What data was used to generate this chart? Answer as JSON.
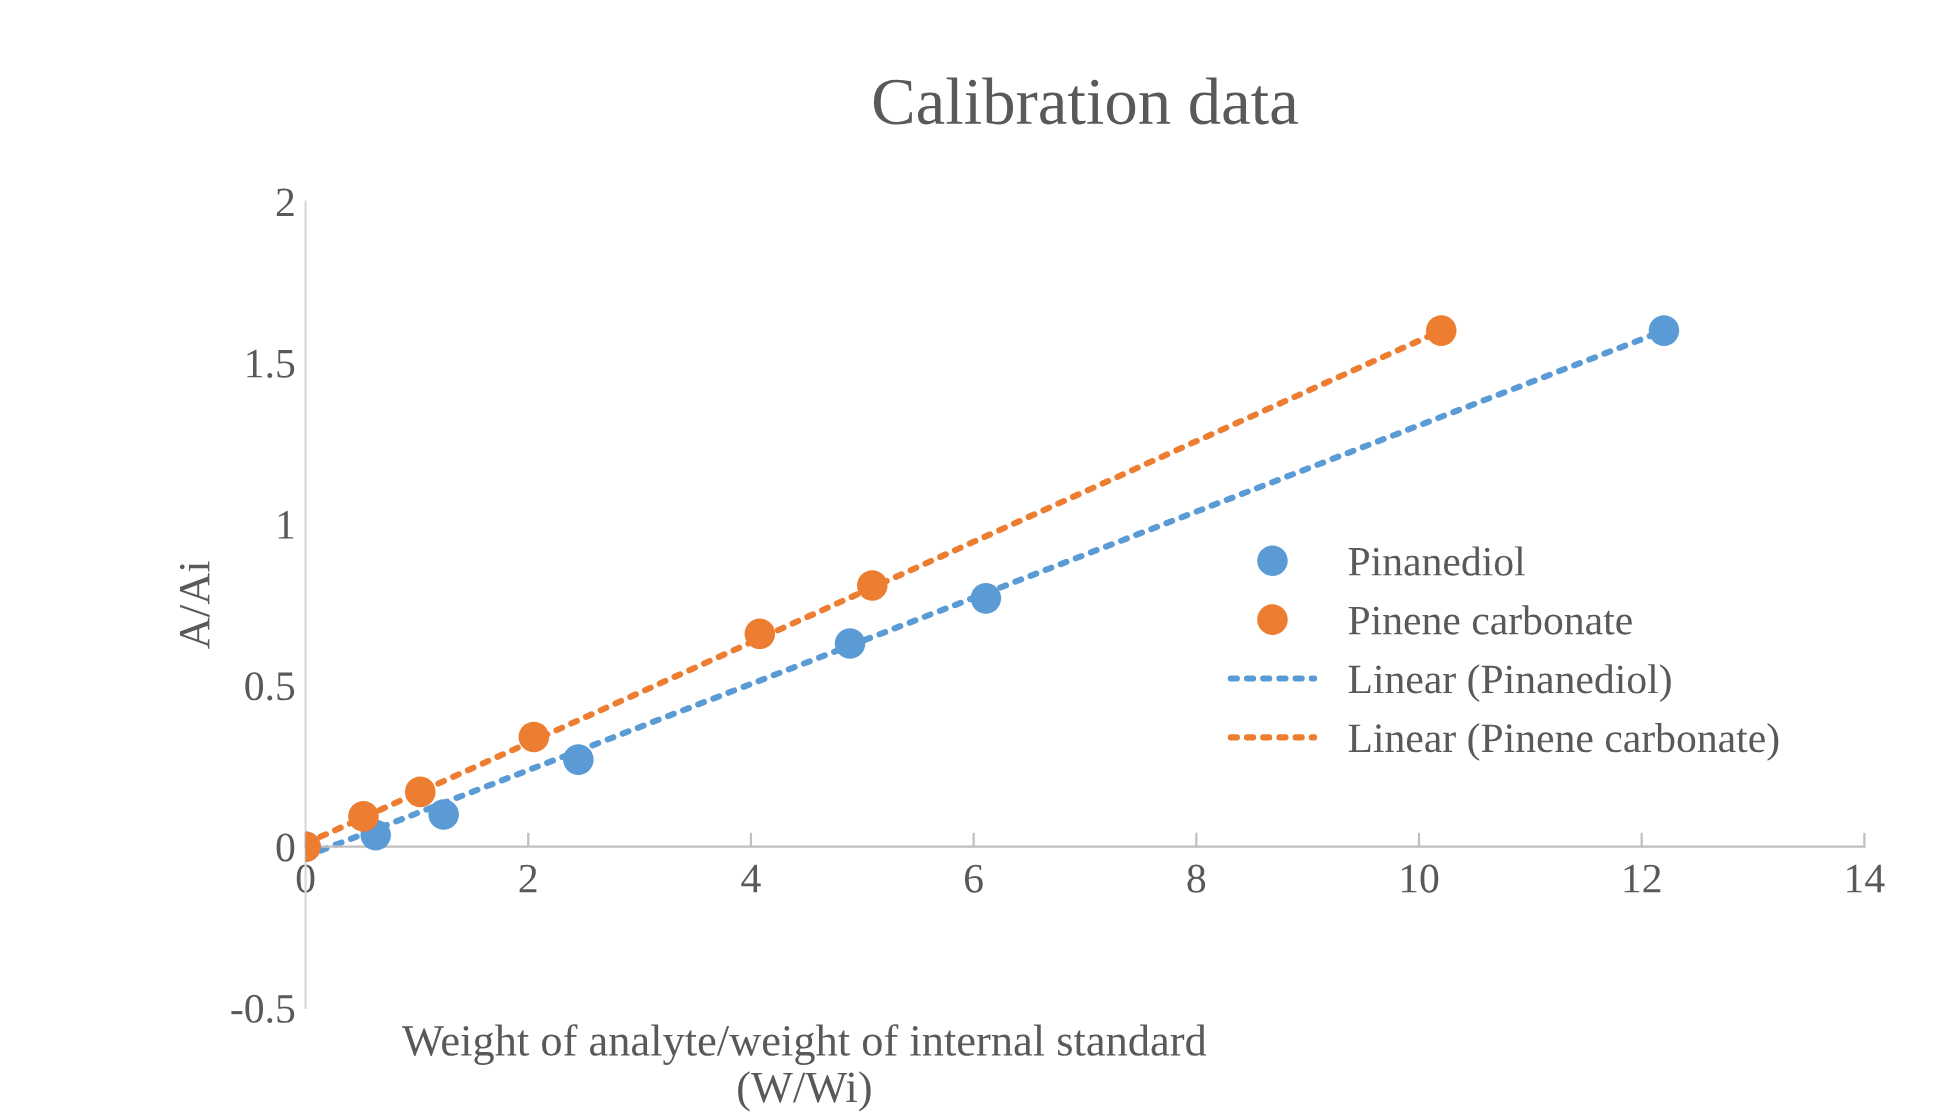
{
  "chart_data": {
    "type": "scatter",
    "title": "Calibration data",
    "xlabel": "Weight of analyte/weight of internal standard\n(W/Wi)",
    "ylabel": "A/Ai",
    "xlim": [
      0,
      14
    ],
    "xticks": [
      0,
      2,
      4,
      6,
      8,
      10,
      12,
      14
    ],
    "ylim": [
      -0.5,
      2
    ],
    "yticks": [
      -0.5,
      0,
      0.5,
      1,
      1.5,
      2
    ],
    "grid": false,
    "legend": "lower right",
    "series": [
      {
        "name": "Pinanediol",
        "marker": "circle",
        "color": "#5b9bd5",
        "x": [
          0,
          0.63,
          1.24,
          2.45,
          4.89,
          6.11,
          12.2
        ],
        "values": [
          0,
          0.036,
          0.1,
          0.27,
          0.63,
          0.77,
          1.6
        ]
      },
      {
        "name": "Pinene carbonate",
        "marker": "circle",
        "color": "#ed7d31",
        "x": [
          0,
          0.52,
          1.03,
          2.05,
          4.08,
          5.09,
          10.2
        ],
        "values": [
          0,
          0.094,
          0.17,
          0.34,
          0.66,
          0.81,
          1.6
        ]
      },
      {
        "name": "Linear (Pinanediol)",
        "type": "line",
        "line_style": "dotted",
        "color": "#5b9bd5",
        "x": [
          0,
          12.2
        ],
        "values": [
          -0.03,
          1.6
        ]
      },
      {
        "name": "Linear (Pinene carbonate)",
        "type": "line",
        "line_style": "dotted",
        "color": "#ed7d31",
        "x": [
          0,
          10.2
        ],
        "values": [
          0.01,
          1.6
        ]
      }
    ]
  }
}
